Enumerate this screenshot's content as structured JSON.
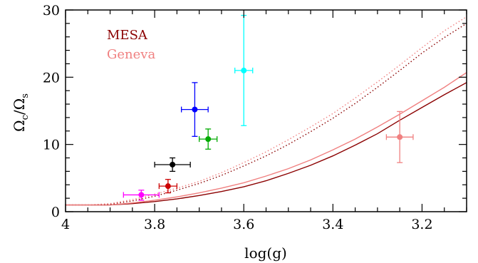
{
  "chart_data": {
    "type": "scatter",
    "xlabel": "log(g)",
    "ylabel_main": "Ω",
    "ylabel_sub_num": "c",
    "ylabel_sub_den": "s",
    "ylabel": "Ωc/Ωs",
    "x_axis_reversed": true,
    "xlim": [
      4.0,
      3.1
    ],
    "ylim": [
      0,
      30
    ],
    "x_ticks": [
      {
        "value": 4.0,
        "label": "4"
      },
      {
        "value": 3.8,
        "label": "3.8"
      },
      {
        "value": 3.6,
        "label": "3.6"
      },
      {
        "value": 3.4,
        "label": "3.4"
      },
      {
        "value": 3.2,
        "label": "3.2"
      }
    ],
    "y_ticks": [
      {
        "value": 0,
        "label": "0"
      },
      {
        "value": 10,
        "label": "10"
      },
      {
        "value": 20,
        "label": "20"
      },
      {
        "value": 30,
        "label": "30"
      }
    ],
    "legend": {
      "placement": "top-left",
      "entries": [
        {
          "label": "MESA",
          "color": "#8b0000"
        },
        {
          "label": "Geneva",
          "color": "#f08080"
        }
      ]
    },
    "points": [
      {
        "x": 3.83,
        "y": 2.5,
        "xerr": 0.04,
        "yerr_low": 0.8,
        "yerr_high": 0.7,
        "color": "#ff00ff"
      },
      {
        "x": 3.77,
        "y": 3.8,
        "xerr": 0.02,
        "yerr_low": 1.0,
        "yerr_high": 1.0,
        "color": "#cc0000"
      },
      {
        "x": 3.76,
        "y": 7.0,
        "xerr": 0.04,
        "yerr_low": 1.0,
        "yerr_high": 1.0,
        "color": "#000000"
      },
      {
        "x": 3.71,
        "y": 15.2,
        "xerr": 0.03,
        "yerr_low": 4.0,
        "yerr_high": 4.0,
        "color": "#0000ff"
      },
      {
        "x": 3.68,
        "y": 10.8,
        "xerr": 0.02,
        "yerr_low": 1.5,
        "yerr_high": 1.5,
        "color": "#00aa00"
      },
      {
        "x": 3.6,
        "y": 21.0,
        "xerr": 0.02,
        "yerr_low": 8.2,
        "yerr_high": 8.2,
        "color": "#00ffff"
      },
      {
        "x": 3.25,
        "y": 11.1,
        "xerr": 0.03,
        "yerr_low": 3.8,
        "yerr_high": 3.8,
        "color": "#f08080"
      }
    ],
    "curves": [
      {
        "model": "MESA",
        "style": "solid",
        "color": "#8b0000",
        "x": [
          4.0,
          3.95,
          3.9,
          3.85,
          3.8,
          3.75,
          3.7,
          3.65,
          3.6,
          3.55,
          3.5,
          3.45,
          3.4,
          3.35,
          3.3,
          3.25,
          3.2,
          3.15,
          3.1
        ],
        "y": [
          1.0,
          1.0,
          1.0,
          1.2,
          1.5,
          1.9,
          2.4,
          3.0,
          3.7,
          4.6,
          5.7,
          6.9,
          8.3,
          9.9,
          11.6,
          13.6,
          15.5,
          17.4,
          19.2
        ]
      },
      {
        "model": "Geneva",
        "style": "solid",
        "color": "#f08080",
        "x": [
          4.0,
          3.95,
          3.9,
          3.85,
          3.8,
          3.75,
          3.7,
          3.65,
          3.6,
          3.55,
          3.5,
          3.45,
          3.4,
          3.35,
          3.3,
          3.25,
          3.2,
          3.15,
          3.1
        ],
        "y": [
          1.0,
          1.0,
          1.0,
          1.3,
          1.7,
          2.2,
          2.8,
          3.5,
          4.3,
          5.3,
          6.4,
          7.7,
          9.2,
          10.8,
          12.6,
          14.5,
          16.5,
          18.5,
          20.7
        ]
      },
      {
        "model": "MESA",
        "style": "dotted",
        "color": "#8b0000",
        "x": [
          4.0,
          3.95,
          3.9,
          3.85,
          3.8,
          3.75,
          3.7,
          3.65,
          3.6,
          3.55,
          3.5,
          3.45,
          3.4,
          3.35,
          3.3,
          3.25,
          3.2,
          3.15,
          3.1
        ],
        "y": [
          1.0,
          1.0,
          1.1,
          1.6,
          2.3,
          3.2,
          4.2,
          5.4,
          6.8,
          8.3,
          10.0,
          11.9,
          13.9,
          16.1,
          18.5,
          21.0,
          23.6,
          25.9,
          28.0
        ]
      },
      {
        "model": "Geneva",
        "style": "dotted",
        "color": "#f08080",
        "x": [
          4.0,
          3.95,
          3.9,
          3.85,
          3.8,
          3.75,
          3.7,
          3.65,
          3.6,
          3.55,
          3.5,
          3.45,
          3.4,
          3.35,
          3.3,
          3.25,
          3.2,
          3.15,
          3.1
        ],
        "y": [
          1.0,
          1.0,
          1.2,
          1.8,
          2.6,
          3.5,
          4.5,
          5.8,
          7.3,
          8.9,
          10.7,
          12.6,
          14.6,
          16.9,
          19.3,
          21.8,
          24.4,
          26.9,
          29.0
        ]
      }
    ]
  }
}
